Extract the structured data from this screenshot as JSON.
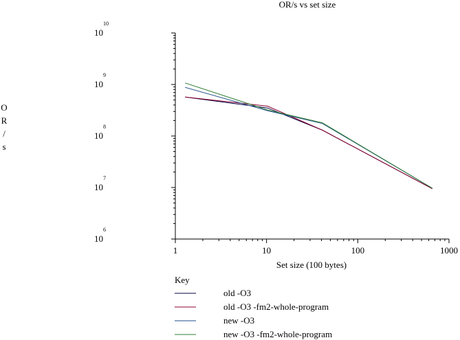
{
  "chart_data": {
    "type": "line",
    "title": "OR/s vs set size",
    "xlabel": "Set size (100 bytes)",
    "ylabel": "OR/s",
    "x_scale": "log",
    "y_scale": "log",
    "xlim": [
      1,
      1000
    ],
    "ylim": [
      1000000,
      10000000000
    ],
    "x_ticks": [
      {
        "value": 1,
        "label": "1"
      },
      {
        "value": 10,
        "label": "10"
      },
      {
        "value": 100,
        "label": "100"
      },
      {
        "value": 1000,
        "label": "1000"
      }
    ],
    "y_ticks": [
      {
        "value": 1000000,
        "base": "10",
        "exp": "6"
      },
      {
        "value": 10000000,
        "base": "10",
        "exp": "7"
      },
      {
        "value": 100000000,
        "base": "10",
        "exp": "8"
      },
      {
        "value": 1000000000,
        "base": "10",
        "exp": "9"
      },
      {
        "value": 10000000000,
        "base": "10",
        "exp": "10"
      }
    ],
    "legend_title": "Key",
    "legend_position": "bottom",
    "grid": false,
    "series": [
      {
        "name": "old -O3",
        "color": "#000040",
        "x": [
          1.28,
          10.24,
          40.96,
          655.36
        ],
        "y": [
          570000000,
          350000000,
          130000000,
          9500000
        ]
      },
      {
        "name": "old -O3 -fm2-whole-program",
        "color": "#8b0030",
        "x": [
          1.28,
          10.24,
          40.96,
          655.36
        ],
        "y": [
          570000000,
          380000000,
          130000000,
          9500000
        ]
      },
      {
        "name": "new -O3",
        "color": "#1f4e8c",
        "x": [
          1.28,
          10.24,
          40.96,
          655.36
        ],
        "y": [
          880000000,
          310000000,
          175000000,
          9700000
        ]
      },
      {
        "name": "new -O3 -fm2-whole-program",
        "color": "#2e7d32",
        "x": [
          1.28,
          10.24,
          40.96,
          655.36
        ],
        "y": [
          1070000000,
          320000000,
          180000000,
          9700000
        ]
      }
    ]
  }
}
